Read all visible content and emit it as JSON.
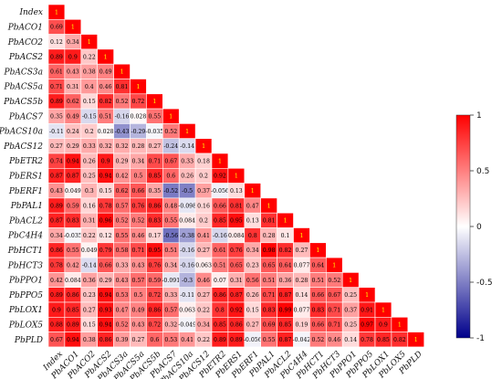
{
  "chart_data": {
    "type": "heatmap",
    "layout": "lower-triangle",
    "variables": [
      "Index",
      "PbACO1",
      "PbACO2",
      "PbACS2",
      "PbACS3a",
      "PbACS5a",
      "PbACS5b",
      "PbACS7",
      "PbACS10a",
      "PbACS12",
      "PbETR2",
      "PbERS1",
      "PbERF1",
      "PbPAL1",
      "PbACL2",
      "PbC4H4",
      "PbHCT1",
      "PbHCT3",
      "PbPPO1",
      "PbPPO5",
      "PbLOX1",
      "PbLOX5",
      "PbPLD"
    ],
    "cell_labels": [
      [
        "1"
      ],
      [
        "0.69",
        "1"
      ],
      [
        "0.12",
        "0.34",
        "1"
      ],
      [
        "0.89",
        "0.9",
        "0.22",
        "1"
      ],
      [
        "0.61",
        "0.43",
        "0.38",
        "0.49",
        "1"
      ],
      [
        "0.71",
        "0.31",
        "0.4",
        "0.46",
        "0.81",
        "1"
      ],
      [
        "0.89",
        "0.62",
        "0.15",
        "0.82",
        "0.52",
        "0.72",
        "1"
      ],
      [
        "0.35",
        "0.49",
        "-0.15",
        "0.51",
        "-0.16",
        "0.028",
        "0.55",
        "1"
      ],
      [
        "-0.11",
        "0.24",
        "0.2",
        "0.028",
        "-0.43",
        "-0.29",
        "-0.035",
        "0.52",
        "1"
      ],
      [
        "0.27",
        "0.29",
        "0.33",
        "0.32",
        "0.32",
        "0.28",
        "0.27",
        "-0.24",
        "-0.14",
        "1"
      ],
      [
        "0.74",
        "0.94",
        "0.26",
        "0.9",
        "0.29",
        "0.34",
        "0.71",
        "0.67",
        "0.33",
        "0.18",
        "1"
      ],
      [
        "0.87",
        "0.87",
        "0.25",
        "0.94",
        "0.42",
        "0.5",
        "0.85",
        "0.6",
        "0.26",
        "0.2",
        "0.92",
        "1"
      ],
      [
        "0.43",
        "0.049",
        "0.3",
        "0.15",
        "0.62",
        "0.66",
        "0.35",
        "-0.52",
        "-0.5",
        "0.37",
        "-0.056",
        "0.13",
        "1"
      ],
      [
        "0.89",
        "0.59",
        "0.16",
        "0.78",
        "0.57",
        "0.76",
        "0.86",
        "0.48",
        "-0.098",
        "0.16",
        "0.66",
        "0.81",
        "0.47",
        "1"
      ],
      [
        "0.87",
        "0.83",
        "0.31",
        "0.96",
        "0.52",
        "0.52",
        "0.83",
        "0.55",
        "0.084",
        "0.2",
        "0.85",
        "0.95",
        "0.13",
        "0.81",
        "1"
      ],
      [
        "0.34",
        "-0.035",
        "0.22",
        "0.12",
        "0.55",
        "0.46",
        "0.17",
        "-0.56",
        "-0.38",
        "0.41",
        "-0.16",
        "0.084",
        "0.8",
        "0.28",
        "0.1",
        "1"
      ],
      [
        "0.86",
        "0.55",
        "0.049",
        "0.79",
        "0.58",
        "0.71",
        "0.95",
        "0.51",
        "-0.16",
        "0.27",
        "0.61",
        "0.76",
        "0.34",
        "0.98",
        "0.82",
        "0.27",
        "1"
      ],
      [
        "0.78",
        "0.42",
        "-0.14",
        "0.66",
        "0.33",
        "0.43",
        "0.76",
        "0.34",
        "-0.16",
        "0.063",
        "0.51",
        "0.65",
        "0.23",
        "0.65",
        "0.64",
        "0.077",
        "0.64",
        "1"
      ],
      [
        "0.42",
        "0.084",
        "0.36",
        "0.29",
        "0.43",
        "0.57",
        "0.59",
        "-0.091",
        "-0.3",
        "0.46",
        "0.07",
        "0.31",
        "0.56",
        "0.51",
        "0.36",
        "0.28",
        "0.51",
        "0.52",
        "1"
      ],
      [
        "0.89",
        "0.86",
        "0.23",
        "0.94",
        "0.53",
        "0.5",
        "0.72",
        "0.33",
        "-0.11",
        "0.27",
        "0.86",
        "0.87",
        "0.26",
        "0.71",
        "0.87",
        "0.14",
        "0.66",
        "0.67",
        "0.25",
        "1"
      ],
      [
        "0.9",
        "0.85",
        "0.27",
        "0.93",
        "0.47",
        "0.49",
        "0.86",
        "0.57",
        "0.063",
        "0.22",
        "0.8",
        "0.92",
        "0.15",
        "0.83",
        "0.99",
        "0.077",
        "0.83",
        "0.71",
        "0.37",
        "0.91",
        "1"
      ],
      [
        "0.88",
        "0.89",
        "0.15",
        "0.94",
        "0.52",
        "0.43",
        "0.72",
        "0.32",
        "-0.049",
        "0.34",
        "0.85",
        "0.86",
        "0.27",
        "0.69",
        "0.85",
        "0.19",
        "0.66",
        "0.71",
        "0.25",
        "0.97",
        "0.9",
        "1"
      ],
      [
        "0.67",
        "0.94",
        "0.38",
        "0.86",
        "0.39",
        "0.27",
        "0.6",
        "0.53",
        "0.41",
        "0.22",
        "0.89",
        "0.89",
        "-0.056",
        "0.55",
        "0.87",
        "-0.042",
        "0.52",
        "0.46",
        "0.14",
        "0.78",
        "0.85",
        "0.82",
        "1"
      ]
    ],
    "colorbar": {
      "min": -1,
      "max": 1,
      "ticks": [
        "1",
        "0.5",
        "0",
        "-0.5",
        "-1"
      ],
      "position": "right"
    },
    "colors": {
      "high": "#ff0000",
      "mid": "#ffffff",
      "low": "#00008b",
      "diagonal_label": "#ffff00",
      "label": "#000000"
    }
  }
}
